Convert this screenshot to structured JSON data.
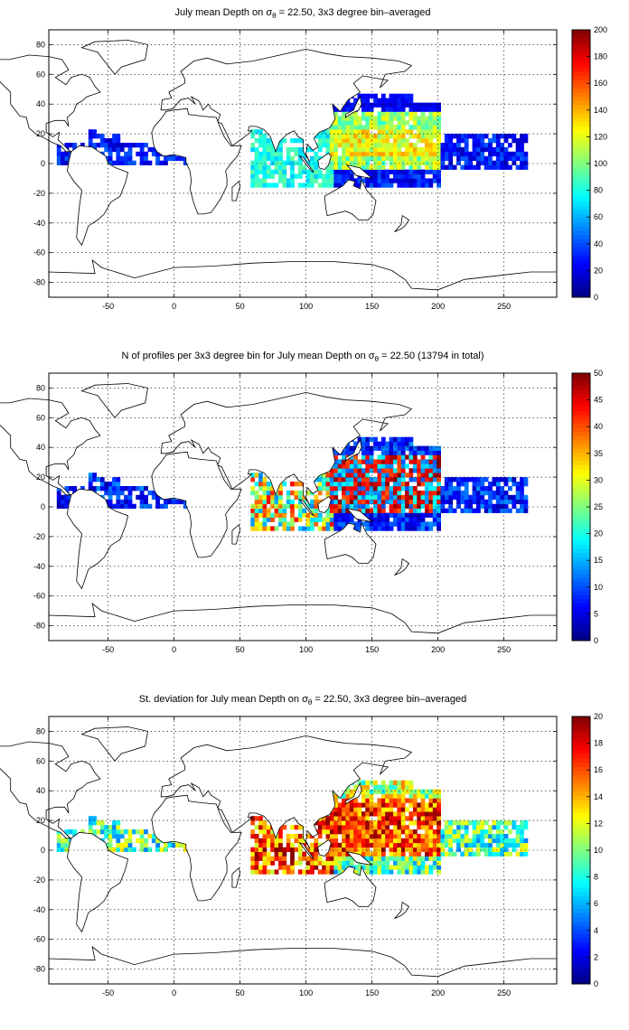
{
  "x_ticks": [
    "-50",
    "0",
    "50",
    "100",
    "150",
    "200",
    "250"
  ],
  "y_ticks": [
    "80",
    "60",
    "40",
    "20",
    "0",
    "-20",
    "-40",
    "-60",
    "-80"
  ],
  "panels": [
    {
      "title_pre": "July mean Depth on σ",
      "title_sub": "θ",
      "title_post": " = 22.50, 3x3 degree bin–averaged",
      "colorbar_ticks": [
        "200",
        "180",
        "160",
        "140",
        "120",
        "100",
        "80",
        "60",
        "40",
        "20",
        "0"
      ],
      "colorbar_max": 200
    },
    {
      "title_pre": "N of profiles per 3x3 degree bin for July mean Depth on σ",
      "title_sub": "θ",
      "title_post": " = 22.50 (13794 in total)",
      "colorbar_ticks": [
        "50",
        "45",
        "40",
        "35",
        "30",
        "25",
        "20",
        "15",
        "10",
        "5",
        "0"
      ],
      "colorbar_max": 50
    },
    {
      "title_pre": "St. deviation for July mean Depth on σ",
      "title_sub": "θ",
      "title_post": " = 22.50, 3x3 degree bin–averaged",
      "colorbar_ticks": [
        "20",
        "18",
        "16",
        "14",
        "12",
        "10",
        "8",
        "6",
        "4",
        "2",
        "0"
      ],
      "colorbar_max": 20
    }
  ],
  "map": {
    "lon_range": [
      -95,
      290
    ],
    "lat_range": [
      -90,
      90
    ],
    "colormap": "jet",
    "colors": {
      "coast": "#000000",
      "grid": "#000000",
      "background": "#ffffff"
    }
  }
}
